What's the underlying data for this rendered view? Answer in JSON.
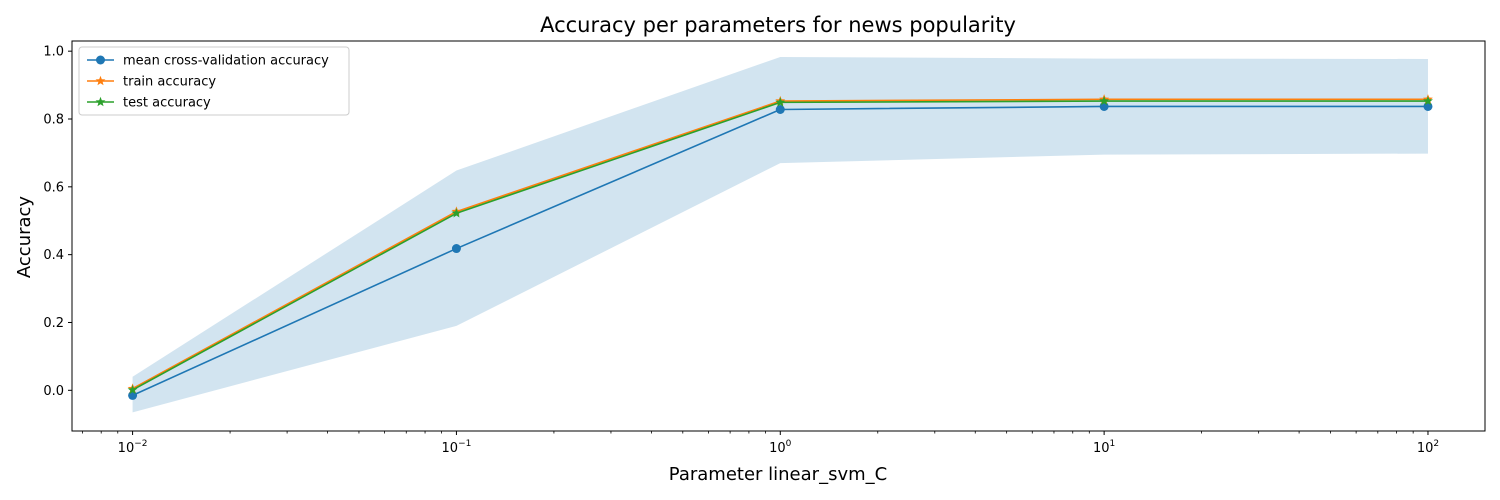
{
  "chart_data": {
    "type": "line",
    "title": "Accuracy per parameters for news popularity",
    "xlabel": "Parameter linear_svm_C",
    "ylabel": "Accuracy",
    "xscale": "log",
    "xlim": [
      0.0065,
      150
    ],
    "ylim": [
      -0.12,
      1.03
    ],
    "x": [
      0.01,
      0.1,
      1,
      10,
      100
    ],
    "x_tick_labels": [
      {
        "base": "10",
        "exp": "−2"
      },
      {
        "base": "10",
        "exp": "−1"
      },
      {
        "base": "10",
        "exp": "0"
      },
      {
        "base": "10",
        "exp": "1"
      },
      {
        "base": "10",
        "exp": "2"
      }
    ],
    "y_ticks": [
      "0.0",
      "0.2",
      "0.4",
      "0.6",
      "0.8",
      "1.0"
    ],
    "band": {
      "lower": [
        -0.065,
        0.19,
        0.67,
        0.695,
        0.698
      ],
      "upper": [
        0.04,
        0.648,
        0.983,
        0.978,
        0.977
      ],
      "color": "#1f77b4",
      "opacity": 0.2
    },
    "series": [
      {
        "name": "mean cross-validation accuracy",
        "values": [
          -0.015,
          0.418,
          0.828,
          0.837,
          0.837
        ],
        "color": "#1f77b4",
        "marker": "circle"
      },
      {
        "name": "train accuracy",
        "values": [
          0.005,
          0.527,
          0.853,
          0.858,
          0.858
        ],
        "color": "#ff7f0e",
        "marker": "star"
      },
      {
        "name": "test accuracy",
        "values": [
          0.001,
          0.522,
          0.849,
          0.853,
          0.853
        ],
        "color": "#2ca02c",
        "marker": "star"
      }
    ],
    "legend": "top-left",
    "grid": false
  }
}
